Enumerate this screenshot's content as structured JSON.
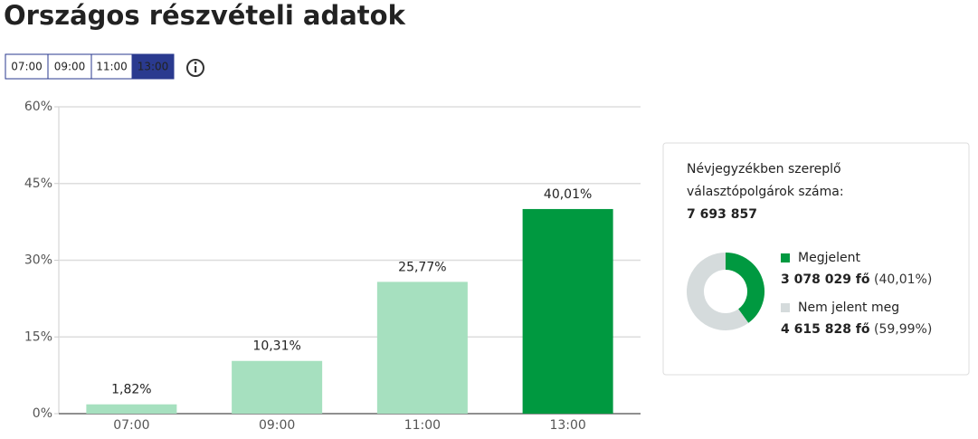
{
  "header": {
    "title": "Országos részvételi adatok"
  },
  "time_buttons": {
    "labels": [
      "07:00",
      "09:00",
      "11:00",
      "13:00"
    ],
    "active": 3
  },
  "chart_data": [
    {
      "type": "bar",
      "categories": [
        "07:00",
        "09:00",
        "11:00",
        "13:00"
      ],
      "values": [
        1.82,
        10.31,
        25.77,
        40.01
      ],
      "value_labels": [
        "1,82%",
        "10,31%",
        "25,77%",
        "40,01%"
      ],
      "colors": [
        "#a6e0bf",
        "#a6e0bf",
        "#a6e0bf",
        "#009940"
      ],
      "ylim": [
        0,
        60
      ],
      "yticks": [
        {
          "value": 0,
          "label": "0%"
        },
        {
          "value": 15,
          "label": "15%"
        },
        {
          "value": 30,
          "label": "30%"
        },
        {
          "value": 45,
          "label": "45%"
        },
        {
          "value": 60,
          "label": "60%"
        }
      ],
      "grid": true
    },
    {
      "type": "pie",
      "title": "Névjegyzékben szereplő választópolgárok száma:",
      "total": "7 693 857",
      "series": [
        {
          "name": "Megjelent",
          "color": "#009940",
          "value": 40.01,
          "value_label": "(40,01%)",
          "count_label": "3 078 029 fő"
        },
        {
          "name": "Nem jelent meg",
          "color": "#d5dbdc",
          "value": 59.99,
          "value_label": "(59,99%)",
          "count_label": "4 615 828 fő"
        }
      ]
    }
  ]
}
